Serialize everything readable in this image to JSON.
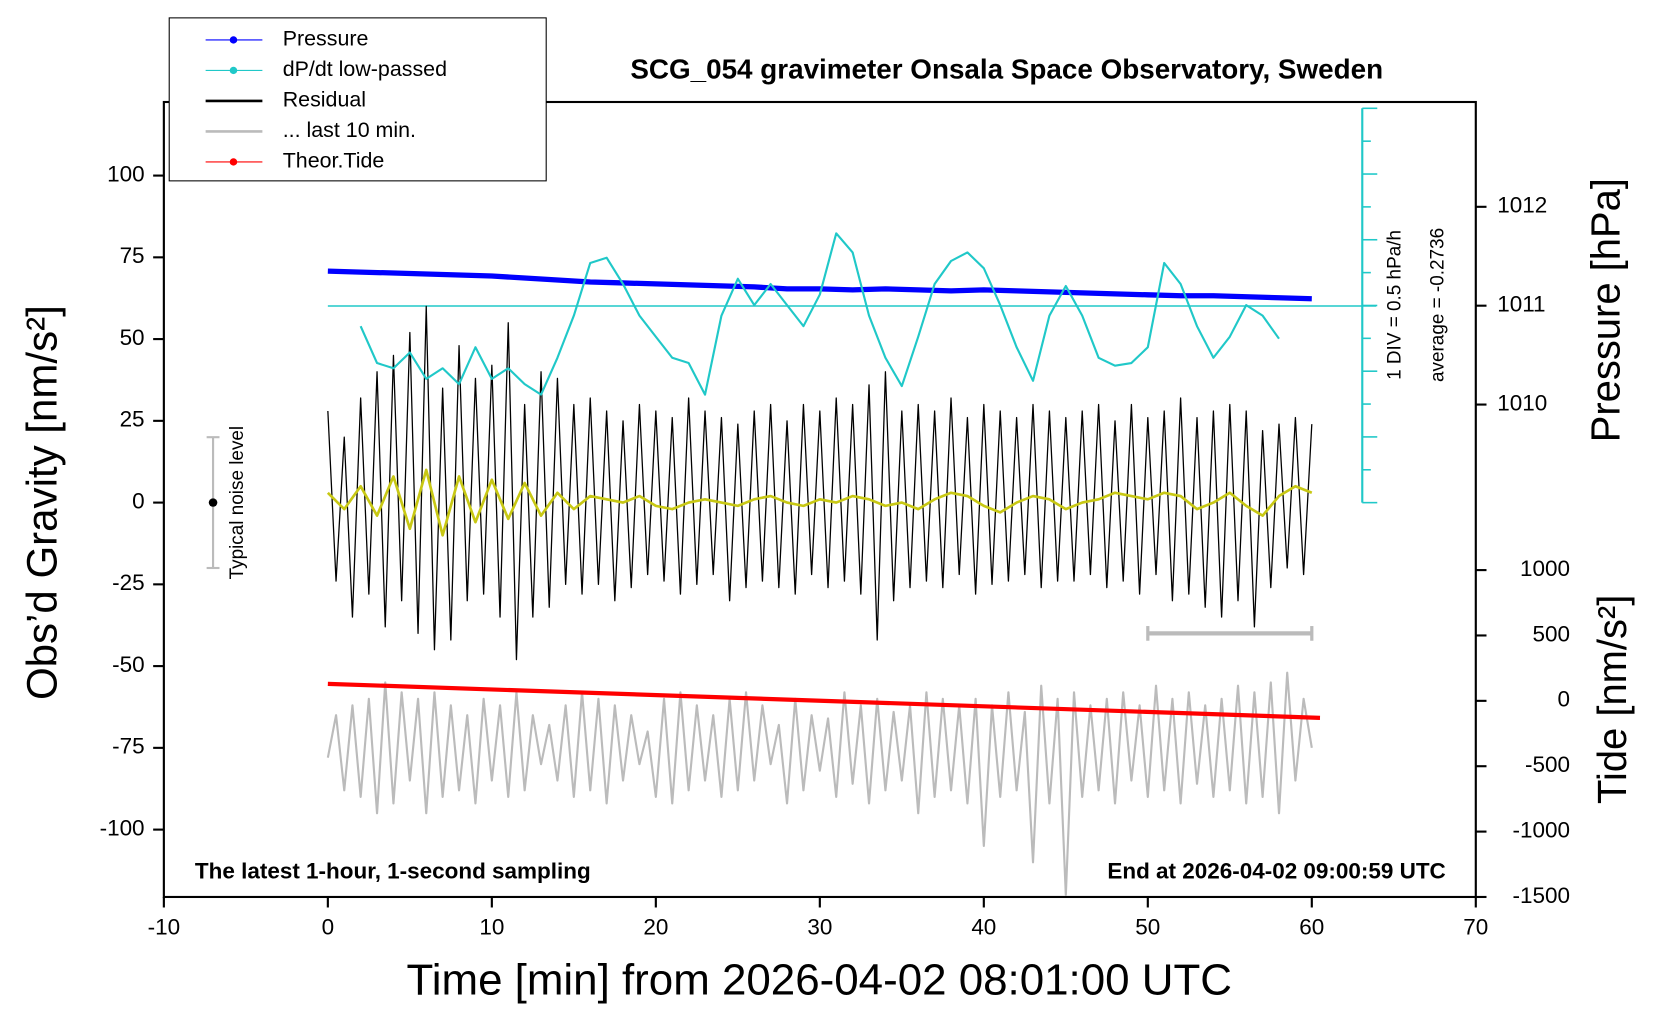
{
  "chart_data": {
    "type": "line",
    "title": "SCG_054 gravimeter Onsala Space Observatory, Sweden",
    "xlabel": "Time [min] from 2026-04-02 08:01:00 UTC",
    "ylabel": "Obs’d Gravity [nm/s²]",
    "y2label": "Pressure [hPa]",
    "y3label": "Tide [nm/s²]",
    "xlim": [
      -10,
      70
    ],
    "xticks": [
      -10,
      0,
      10,
      20,
      30,
      40,
      50,
      60,
      70
    ],
    "ylim": [
      -120.6,
      122.5
    ],
    "yticks": [
      -100,
      -75,
      -50,
      -25,
      0,
      25,
      50,
      75,
      100
    ],
    "y2lim": [
      1005.02,
      1013.06
    ],
    "y2ticks": [
      1010,
      1011,
      1012
    ],
    "y3lim": [
      -1500,
      4580
    ],
    "y3ticks": [
      -1500,
      -1000,
      -500,
      0,
      500,
      1000
    ],
    "y4lim": [
      -9.25,
      2.825
    ],
    "dpdt_average": -0.2736,
    "dpdt_average_label": "average = -0.2736",
    "dpdt_div_label": "1 DIV = 0.5 hPa/h",
    "noise_label": "Typical noise level",
    "noise_bar": {
      "x": -7,
      "values": [
        -20,
        0,
        20
      ]
    },
    "span_bar": {
      "x": [
        50,
        60
      ],
      "y": -40
    },
    "annotations": [
      "The latest 1-hour, 1-second sampling",
      "End at 2026-04-02 09:00:59 UTC"
    ],
    "series": [
      {
        "name": "Pressure",
        "color": "#0000ff",
        "axis": "y2",
        "marker": true,
        "x": [
          0,
          2,
          4,
          6,
          8,
          10,
          12,
          14,
          16,
          18,
          20,
          22,
          24,
          26,
          28,
          30,
          32,
          34,
          36,
          38,
          40,
          42,
          44,
          46,
          48,
          50,
          52,
          54,
          56,
          58,
          60
        ],
        "values": [
          1011.35,
          1011.34,
          1011.33,
          1011.32,
          1011.31,
          1011.3,
          1011.28,
          1011.26,
          1011.24,
          1011.23,
          1011.22,
          1011.21,
          1011.2,
          1011.19,
          1011.17,
          1011.17,
          1011.16,
          1011.17,
          1011.16,
          1011.15,
          1011.16,
          1011.15,
          1011.14,
          1011.13,
          1011.12,
          1011.11,
          1011.1,
          1011.1,
          1011.09,
          1011.08,
          1011.07
        ]
      },
      {
        "name": "dP/dt low-passed",
        "color": "#20c8c8",
        "axis": "y4",
        "marker": true,
        "x": [
          2,
          3,
          4,
          5,
          6,
          7,
          8,
          9,
          10,
          11,
          12,
          13,
          14,
          15,
          16,
          17,
          18,
          19,
          20,
          21,
          22,
          23,
          24,
          25,
          26,
          27,
          28,
          29,
          30,
          31,
          32,
          33,
          34,
          35,
          36,
          37,
          38,
          39,
          40,
          41,
          42,
          43,
          44,
          45,
          46,
          47,
          48,
          49,
          50,
          51,
          52,
          53,
          54,
          55,
          56,
          57,
          58
        ],
        "values": [
          -0.58,
          -1.14,
          -1.22,
          -0.98,
          -1.38,
          -1.22,
          -1.46,
          -0.9,
          -1.38,
          -1.22,
          -1.46,
          -1.62,
          -1.06,
          -0.42,
          0.38,
          0.46,
          0.06,
          -0.42,
          -0.74,
          -1.06,
          -1.14,
          -1.62,
          -0.42,
          0.14,
          -0.26,
          0.06,
          -0.26,
          -0.58,
          -0.1,
          0.83,
          0.54,
          -0.42,
          -1.06,
          -1.49,
          -0.74,
          0.06,
          0.41,
          0.54,
          0.3,
          -0.26,
          -0.9,
          -1.41,
          -0.42,
          0.03,
          -0.42,
          -1.06,
          -1.18,
          -1.14,
          -0.9,
          0.38,
          0.06,
          -0.58,
          -1.06,
          -0.74,
          -0.26,
          -0.42,
          -0.77
        ]
      },
      {
        "name": "Residual",
        "color": "#000000",
        "marker": false,
        "x": [
          0,
          0.5,
          1,
          1.5,
          2,
          2.5,
          3,
          3.5,
          4,
          4.5,
          5,
          5.5,
          6,
          6.5,
          7,
          7.5,
          8,
          8.5,
          9,
          9.5,
          10,
          10.5,
          11,
          11.5,
          12,
          12.5,
          13,
          13.5,
          14,
          14.5,
          15,
          15.5,
          16,
          16.5,
          17,
          17.5,
          18,
          18.5,
          19,
          19.5,
          20,
          20.5,
          21,
          21.5,
          22,
          22.5,
          23,
          23.5,
          24,
          24.5,
          25,
          25.5,
          26,
          26.5,
          27,
          27.5,
          28,
          28.5,
          29,
          29.5,
          30,
          30.5,
          31,
          31.5,
          32,
          32.5,
          33,
          33.5,
          34,
          34.5,
          35,
          35.5,
          36,
          36.5,
          37,
          37.5,
          38,
          38.5,
          39,
          39.5,
          40,
          40.5,
          41,
          41.5,
          42,
          42.5,
          43,
          43.5,
          44,
          44.5,
          45,
          45.5,
          46,
          46.5,
          47,
          47.5,
          48,
          48.5,
          49,
          49.5,
          50,
          50.5,
          51,
          51.5,
          52,
          52.5,
          53,
          53.5,
          54,
          54.5,
          55,
          55.5,
          56,
          56.5,
          57,
          57.5,
          58,
          58.5,
          59,
          59.5,
          60
        ],
        "values": [
          28,
          -24,
          20,
          -35,
          32,
          -28,
          40,
          -38,
          45,
          -30,
          52,
          -40,
          60,
          -45,
          35,
          -42,
          48,
          -30,
          38,
          -28,
          42,
          -35,
          55,
          -48,
          30,
          -35,
          40,
          -32,
          38,
          -25,
          30,
          -28,
          32,
          -25,
          28,
          -30,
          25,
          -26,
          30,
          -22,
          28,
          -24,
          26,
          -28,
          32,
          -25,
          28,
          -22,
          26,
          -30,
          24,
          -26,
          28,
          -24,
          30,
          -26,
          25,
          -28,
          30,
          -22,
          28,
          -26,
          32,
          -24,
          30,
          -28,
          36,
          -42,
          40,
          -30,
          28,
          -26,
          30,
          -24,
          28,
          -26,
          32,
          -22,
          26,
          -28,
          30,
          -25,
          28,
          -24,
          26,
          -22,
          30,
          -26,
          28,
          -24,
          26,
          -24,
          28,
          -22,
          30,
          -26,
          25,
          -24,
          30,
          -28,
          26,
          -22,
          28,
          -30,
          32,
          -28,
          26,
          -32,
          28,
          -35,
          30,
          -30,
          28,
          -38,
          22,
          -26,
          24,
          -20,
          26,
          -22,
          24
        ]
      },
      {
        "name": "... last 10 min.",
        "color": "#bbbbbb",
        "marker": false,
        "x": [
          0,
          0.5,
          1,
          1.5,
          2,
          2.5,
          3,
          3.5,
          4,
          4.5,
          5,
          5.5,
          6,
          6.5,
          7,
          7.5,
          8,
          8.5,
          9,
          9.5,
          10,
          10.5,
          11,
          11.5,
          12,
          12.5,
          13,
          13.5,
          14,
          14.5,
          15,
          15.5,
          16,
          16.5,
          17,
          17.5,
          18,
          18.5,
          19,
          19.5,
          20,
          20.5,
          21,
          21.5,
          22,
          22.5,
          23,
          23.5,
          24,
          24.5,
          25,
          25.5,
          26,
          26.5,
          27,
          27.5,
          28,
          28.5,
          29,
          29.5,
          30,
          30.5,
          31,
          31.5,
          32,
          32.5,
          33,
          33.5,
          34,
          34.5,
          35,
          35.5,
          36,
          36.5,
          37,
          37.5,
          38,
          38.5,
          39,
          39.5,
          40,
          40.5,
          41,
          41.5,
          42,
          42.5,
          43,
          43.5,
          44,
          44.5,
          45,
          45.5,
          46,
          46.5,
          47,
          47.5,
          48,
          48.5,
          49,
          49.5,
          50,
          50.5,
          51,
          51.5,
          52,
          52.5,
          53,
          53.5,
          54,
          54.5,
          55,
          55.5,
          56,
          56.5,
          57,
          57.5,
          58,
          58.5,
          59,
          59.5,
          60
        ],
        "values": [
          -78,
          -65,
          -88,
          -62,
          -90,
          -60,
          -95,
          -55,
          -92,
          -58,
          -85,
          -60,
          -95,
          -58,
          -90,
          -62,
          -88,
          -65,
          -92,
          -60,
          -85,
          -62,
          -90,
          -58,
          -88,
          -65,
          -80,
          -68,
          -85,
          -62,
          -90,
          -58,
          -88,
          -60,
          -92,
          -62,
          -85,
          -65,
          -80,
          -70,
          -90,
          -60,
          -92,
          -58,
          -88,
          -62,
          -85,
          -65,
          -90,
          -60,
          -88,
          -58,
          -85,
          -62,
          -80,
          -68,
          -92,
          -60,
          -88,
          -65,
          -82,
          -66,
          -90,
          -58,
          -86,
          -62,
          -92,
          -60,
          -88,
          -64,
          -85,
          -62,
          -95,
          -58,
          -90,
          -60,
          -88,
          -62,
          -92,
          -60,
          -105,
          -62,
          -90,
          -58,
          -88,
          -64,
          -110,
          -56,
          -92,
          -60,
          -120,
          -58,
          -90,
          -62,
          -88,
          -60,
          -92,
          -58,
          -85,
          -62,
          -90,
          -56,
          -88,
          -60,
          -92,
          -58,
          -86,
          -62,
          -90,
          -60,
          -88,
          -56,
          -92,
          -58,
          -90,
          -55,
          -95,
          -52,
          -85,
          -60,
          -75
        ]
      },
      {
        "name": "Theor.Tide",
        "color": "#ff0000",
        "axis": "y3",
        "marker": true,
        "x": [
          0,
          60.5
        ],
        "values": [
          130,
          -130
        ]
      },
      {
        "color": "#c8c814",
        "marker": false,
        "x": [
          0,
          1,
          2,
          3,
          4,
          5,
          6,
          7,
          8,
          9,
          10,
          11,
          12,
          13,
          14,
          15,
          16,
          17,
          18,
          19,
          20,
          21,
          22,
          23,
          24,
          25,
          26,
          27,
          28,
          29,
          30,
          31,
          32,
          33,
          34,
          35,
          36,
          37,
          38,
          39,
          40,
          41,
          42,
          43,
          44,
          45,
          46,
          47,
          48,
          49,
          50,
          51,
          52,
          53,
          54,
          55,
          56,
          57,
          58,
          59,
          60
        ],
        "values": [
          3,
          -2,
          5,
          -4,
          8,
          -8,
          10,
          -10,
          8,
          -6,
          7,
          -5,
          6,
          -4,
          3,
          -2,
          2,
          1,
          0,
          2,
          -1,
          -2,
          0,
          1,
          0,
          -1,
          1,
          2,
          0,
          -1,
          1,
          0,
          2,
          1,
          -1,
          0,
          -2,
          1,
          3,
          2,
          -1,
          -3,
          0,
          2,
          1,
          -2,
          0,
          1,
          3,
          2,
          1,
          3,
          2,
          -2,
          0,
          3,
          -1,
          -4,
          2,
          5,
          3
        ]
      }
    ]
  }
}
